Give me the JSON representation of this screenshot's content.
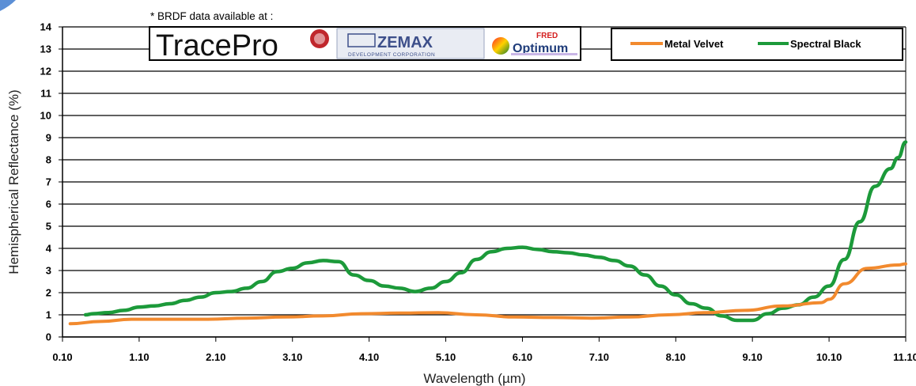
{
  "note": "* BRDF data available at :",
  "logos": {
    "tracepro": "TracePro",
    "zemax": "ZEMAX",
    "zemax_sub": "DEVELOPMENT CORPORATION",
    "fred_top": "FRED",
    "fred_main": "Optimum"
  },
  "colors": {
    "metal_velvet": "#f28a2e",
    "spectral_black": "#1c9a3a",
    "grid": "#000000",
    "corner_accent": "#5b8fd6"
  },
  "chart_data": {
    "type": "line",
    "xlabel": "Wavelength (µm)",
    "ylabel": "Hemispherical Reflectance (%)",
    "xlim": [
      0.1,
      11.1
    ],
    "ylim": [
      0,
      14
    ],
    "x_ticks": [
      "0.10",
      "1.10",
      "2.10",
      "3.10",
      "4.10",
      "5.10",
      "6.10",
      "7.10",
      "8.10",
      "9.10",
      "10.10",
      "11.10"
    ],
    "y_ticks": [
      "0",
      "1",
      "2",
      "3",
      "4",
      "5",
      "6",
      "7",
      "8",
      "9",
      "10",
      "11",
      "12",
      "13",
      "14"
    ],
    "grid": "horizontal",
    "legend_position": "top-right",
    "series": [
      {
        "name": "Metal Velvet",
        "x": [
          0.2,
          0.6,
          1.0,
          1.5,
          2.0,
          2.5,
          3.0,
          3.5,
          4.0,
          4.5,
          5.0,
          5.5,
          6.0,
          6.5,
          7.0,
          7.5,
          8.0,
          8.5,
          9.0,
          9.5,
          10.0,
          10.1,
          10.3,
          10.6,
          11.0,
          11.1
        ],
        "y": [
          0.6,
          0.7,
          0.8,
          0.8,
          0.8,
          0.85,
          0.9,
          0.95,
          1.05,
          1.08,
          1.1,
          1.0,
          0.9,
          0.88,
          0.85,
          0.9,
          1.0,
          1.1,
          1.2,
          1.4,
          1.55,
          1.7,
          2.4,
          3.1,
          3.25,
          3.3
        ]
      },
      {
        "name": "Spectral Black",
        "x": [
          0.4,
          0.5,
          0.7,
          0.9,
          1.1,
          1.3,
          1.5,
          1.7,
          1.9,
          2.1,
          2.3,
          2.5,
          2.7,
          2.9,
          3.1,
          3.3,
          3.5,
          3.7,
          3.9,
          4.1,
          4.3,
          4.5,
          4.7,
          4.9,
          5.1,
          5.3,
          5.5,
          5.7,
          5.9,
          6.1,
          6.3,
          6.5,
          6.7,
          6.9,
          7.1,
          7.3,
          7.5,
          7.7,
          7.9,
          8.1,
          8.3,
          8.5,
          8.7,
          8.9,
          9.1,
          9.3,
          9.5,
          9.7,
          9.9,
          10.1,
          10.3,
          10.5,
          10.7,
          10.9,
          11.0,
          11.1
        ],
        "y": [
          1.0,
          1.05,
          1.1,
          1.2,
          1.35,
          1.4,
          1.5,
          1.65,
          1.8,
          2.0,
          2.05,
          2.2,
          2.5,
          2.95,
          3.1,
          3.35,
          3.45,
          3.4,
          2.8,
          2.55,
          2.3,
          2.2,
          2.05,
          2.2,
          2.5,
          2.9,
          3.5,
          3.85,
          4.0,
          4.05,
          3.95,
          3.85,
          3.8,
          3.7,
          3.6,
          3.45,
          3.2,
          2.8,
          2.3,
          1.9,
          1.5,
          1.3,
          0.95,
          0.75,
          0.75,
          1.05,
          1.3,
          1.45,
          1.8,
          2.3,
          3.5,
          5.2,
          6.8,
          7.6,
          8.1,
          8.8
        ]
      }
    ]
  }
}
